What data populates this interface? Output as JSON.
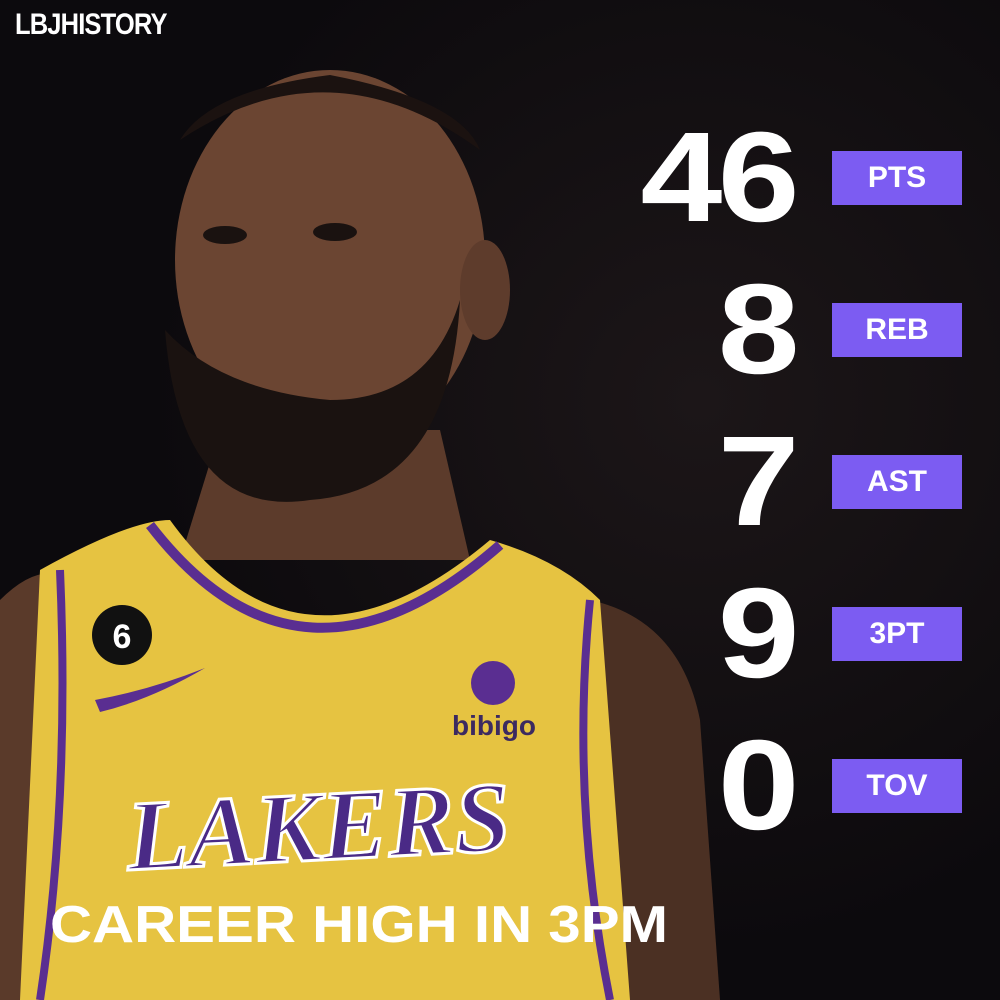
{
  "brand": "LBJHISTORY",
  "stats": [
    {
      "value": 46,
      "label": "PTS"
    },
    {
      "value": 8,
      "label": "REB"
    },
    {
      "value": 7,
      "label": "AST"
    },
    {
      "value": 9,
      "label": "3PT"
    },
    {
      "value": 0,
      "label": "TOV"
    }
  ],
  "caption": "CAREER HIGH IN 3PM",
  "photo": {
    "jersey_number": "6",
    "sponsor": "bibigo",
    "team": "LAKERS"
  }
}
